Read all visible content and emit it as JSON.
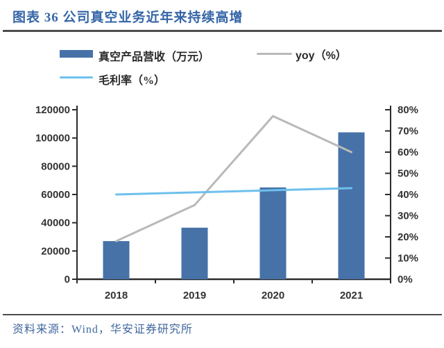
{
  "header": {
    "title": "图表 36 公司真空业务近年来持续高增"
  },
  "legend": {
    "items": [
      {
        "label": "真空产品营收（万元）",
        "swatch": "bar",
        "color": "#4672a8"
      },
      {
        "label": "yoy（%）",
        "swatch": "line",
        "color": "#b9b9b9"
      },
      {
        "label": "毛利率（%）",
        "swatch": "line",
        "color": "#6ec0ec"
      }
    ]
  },
  "footer": {
    "source": "资料来源：Wind，华安证券研究所"
  },
  "colors": {
    "title_blue": "#3465a7",
    "bar_blue": "#4672a8",
    "yoy_gray": "#b9b9b9",
    "margin_blue": "#6ec0ec",
    "axis_line": "#2b2b2b",
    "axis_text": "#333333",
    "divider": "#4d4d4d",
    "source_blue": "#40679e"
  },
  "chart_data": {
    "type": "bar",
    "title": "公司真空业务近年来持续高增",
    "categories": [
      "2018",
      "2019",
      "2020",
      "2021"
    ],
    "series": [
      {
        "name": "真空产品营收（万元）",
        "type": "bar",
        "axis": "left",
        "color": "#4672a8",
        "values": [
          27000,
          36500,
          65000,
          104000
        ]
      },
      {
        "name": "yoy（%）",
        "type": "line",
        "axis": "right",
        "color": "#b9b9b9",
        "values": [
          18,
          35,
          77,
          60
        ]
      },
      {
        "name": "毛利率（%）",
        "type": "line",
        "axis": "right",
        "color": "#6ec0ec",
        "values": [
          40,
          41,
          42,
          43
        ]
      }
    ],
    "left_axis": {
      "min": 0,
      "max": 120000,
      "step": 20000,
      "tick_labels": [
        "0",
        "20000",
        "40000",
        "60000",
        "80000",
        "100000",
        "120000"
      ]
    },
    "right_axis": {
      "min": 0,
      "max": 80,
      "step": 10,
      "tick_labels": [
        "0%",
        "10%",
        "20%",
        "30%",
        "40%",
        "50%",
        "60%",
        "70%",
        "80%"
      ]
    },
    "grid": false,
    "legend_position": "top-left"
  }
}
